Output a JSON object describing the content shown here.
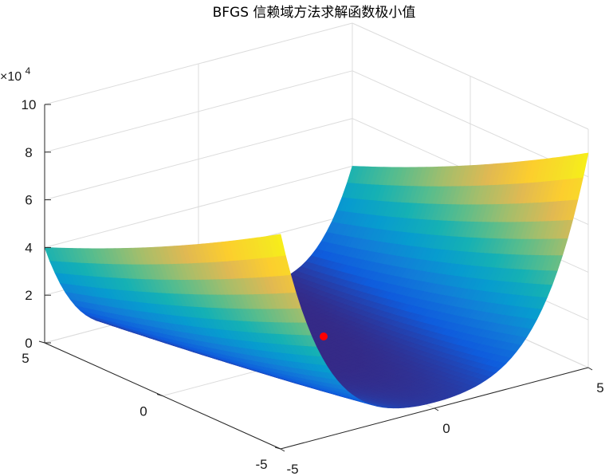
{
  "chart_data": {
    "type": "surface",
    "title": "BFGS 信赖域方法求解函数极小值",
    "function": "100*(y - x^2)^2 + (1 - x)^2",
    "x": {
      "lim": [
        -5,
        5
      ],
      "ticks": [
        -5,
        0,
        5
      ]
    },
    "y": {
      "lim": [
        -5,
        5
      ],
      "ticks": [
        -5,
        0,
        5
      ]
    },
    "z": {
      "lim": [
        0,
        100000
      ],
      "ticks": [
        0,
        20000,
        40000,
        60000,
        80000,
        100000
      ],
      "tick_labels": [
        "0",
        "2",
        "4",
        "6",
        "8",
        "10"
      ],
      "exponent_base": "×10",
      "exponent_power": "4"
    },
    "grid": true,
    "colormap": "parula",
    "minimum_point": {
      "x": 1,
      "y": 1,
      "z": 0,
      "color": "#ff0000"
    }
  }
}
